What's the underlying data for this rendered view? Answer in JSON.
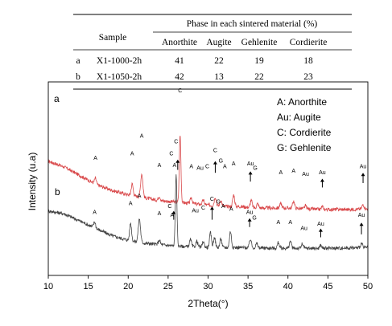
{
  "chart_data": {
    "type": "line",
    "xlabel": "2Theta(°)",
    "ylabel": "Intensity (u.a)",
    "xlim": [
      10,
      50
    ],
    "xticks": [
      10,
      15,
      20,
      25,
      30,
      35,
      40,
      45,
      50
    ],
    "grid": false,
    "table": {
      "headers": {
        "sample": "Sample",
        "phase_group": "Phase in each sintered material (%)",
        "phases": [
          "Anorthite",
          "Augite",
          "Gehlenite",
          "Cordierite"
        ]
      },
      "rows": [
        {
          "id": "a",
          "sample": "X1-1000-2h",
          "values": [
            "41",
            "22",
            "19",
            "18"
          ]
        },
        {
          "id": "b",
          "sample": "X1-1050-2h",
          "values": [
            "42",
            "13",
            "22",
            "23"
          ]
        }
      ]
    },
    "legend": {
      "placement": "top-right",
      "entries": [
        "A: Anorthite",
        "Au: Augite",
        "C: Cordierite",
        "G: Gehlenite"
      ]
    },
    "series": [
      {
        "name": "a",
        "color": "#d9484a",
        "level": 0.56,
        "baseline": [
          [
            10,
            78
          ],
          [
            12,
            74
          ],
          [
            14,
            68
          ],
          [
            16,
            62
          ],
          [
            18,
            58
          ],
          [
            20,
            55
          ],
          [
            22,
            53
          ],
          [
            24,
            51
          ],
          [
            26,
            50
          ],
          [
            28,
            49
          ],
          [
            30,
            48
          ],
          [
            32,
            47
          ],
          [
            34,
            47
          ],
          [
            36,
            46
          ],
          [
            38,
            46
          ],
          [
            40,
            46
          ],
          [
            42,
            45.5
          ],
          [
            44,
            45
          ],
          [
            46,
            45
          ],
          [
            48,
            45
          ],
          [
            50,
            45.5
          ]
        ],
        "peaks": [
          [
            15.9,
            4,
            0.12
          ],
          [
            20.5,
            8,
            0.12
          ],
          [
            21.7,
            16,
            0.14
          ],
          [
            23.9,
            3,
            0.12
          ],
          [
            26.5,
            46,
            0.1
          ],
          [
            27.9,
            4,
            0.12
          ],
          [
            29.4,
            3,
            0.12
          ],
          [
            30.9,
            6,
            0.12
          ],
          [
            31.6,
            4,
            0.12
          ],
          [
            33.2,
            8,
            0.12
          ],
          [
            35.4,
            5,
            0.12
          ],
          [
            36.2,
            3,
            0.12
          ],
          [
            39.1,
            3,
            0.12
          ],
          [
            40.7,
            5,
            0.12
          ],
          [
            42.2,
            2,
            0.12
          ],
          [
            44.3,
            2,
            0.12
          ],
          [
            49.4,
            3,
            0.12
          ]
        ]
      },
      {
        "name": "b",
        "color": "#444444",
        "level": 0.81,
        "baseline": [
          [
            10,
            44
          ],
          [
            12,
            42
          ],
          [
            14,
            37
          ],
          [
            16,
            32
          ],
          [
            18,
            27
          ],
          [
            20,
            24
          ],
          [
            22,
            22
          ],
          [
            24,
            21
          ],
          [
            26,
            20
          ],
          [
            28,
            19.5
          ],
          [
            30,
            19
          ],
          [
            32,
            19
          ],
          [
            34,
            19
          ],
          [
            36,
            18.8
          ],
          [
            38,
            18.6
          ],
          [
            40,
            18.5
          ],
          [
            42,
            18.5
          ],
          [
            44,
            18.5
          ],
          [
            46,
            18.6
          ],
          [
            48,
            18.8
          ],
          [
            50,
            19
          ]
        ],
        "peaks": [
          [
            15.8,
            4,
            0.12
          ],
          [
            20.3,
            12,
            0.12
          ],
          [
            21.4,
            16,
            0.14
          ],
          [
            23.9,
            3,
            0.12
          ],
          [
            26.0,
            48,
            0.1
          ],
          [
            27.8,
            5,
            0.12
          ],
          [
            28.6,
            4,
            0.12
          ],
          [
            29.4,
            4,
            0.12
          ],
          [
            30.3,
            10,
            0.12
          ],
          [
            30.8,
            7,
            0.12
          ],
          [
            31.6,
            6,
            0.12
          ],
          [
            32.8,
            11,
            0.12
          ],
          [
            35.3,
            6,
            0.12
          ],
          [
            36.1,
            3,
            0.12
          ],
          [
            38.8,
            4,
            0.12
          ],
          [
            40.3,
            5,
            0.12
          ],
          [
            41.8,
            3,
            0.12
          ],
          [
            44.1,
            2,
            0.12
          ],
          [
            49.2,
            3,
            0.12
          ]
        ]
      }
    ],
    "series_labels": [
      "a",
      "b"
    ],
    "peak_labels": [
      {
        "text": "A",
        "x": 15.9,
        "y": 79
      },
      {
        "text": "A",
        "x": 20.5,
        "y": 82
      },
      {
        "text": "A",
        "x": 21.7,
        "y": 94
      },
      {
        "text": "A",
        "x": 23.9,
        "y": 74
      },
      {
        "text": "C",
        "x": 26.5,
        "y": 125
      },
      {
        "text": "C",
        "x": 25.4,
        "y": 82
      },
      {
        "text": "A",
        "x": 25.8,
        "y": 74
      },
      {
        "text": "A",
        "x": 27.9,
        "y": 73
      },
      {
        "text": "Au",
        "x": 29.0,
        "y": 72
      },
      {
        "text": "C",
        "x": 29.9,
        "y": 73
      },
      {
        "text": "C",
        "x": 30.9,
        "y": 84
      },
      {
        "text": "G",
        "x": 31.6,
        "y": 77
      },
      {
        "text": "A",
        "x": 32.1,
        "y": 73
      },
      {
        "text": "A",
        "x": 33.2,
        "y": 75
      },
      {
        "text": "Au",
        "x": 35.3,
        "y": 75
      },
      {
        "text": "G",
        "x": 35.9,
        "y": 72
      },
      {
        "text": "A",
        "x": 39.1,
        "y": 69
      },
      {
        "text": "A",
        "x": 40.7,
        "y": 70
      },
      {
        "text": "Au",
        "x": 42.2,
        "y": 68
      },
      {
        "text": "Au",
        "x": 44.3,
        "y": 69
      },
      {
        "text": "Au",
        "x": 49.4,
        "y": 73
      },
      {
        "text": "A",
        "x": 15.8,
        "y": 42
      },
      {
        "text": "A",
        "x": 20.3,
        "y": 48
      },
      {
        "text": "A",
        "x": 21.4,
        "y": 53
      },
      {
        "text": "A",
        "x": 23.9,
        "y": 41
      },
      {
        "text": "C",
        "x": 26.0,
        "y": 90
      },
      {
        "text": "C",
        "x": 25.2,
        "y": 46
      },
      {
        "text": "A",
        "x": 25.5,
        "y": 40
      },
      {
        "text": "Au",
        "x": 28.4,
        "y": 43
      },
      {
        "text": "C",
        "x": 29.4,
        "y": 45
      },
      {
        "text": "C",
        "x": 30.5,
        "y": 51
      },
      {
        "text": "G",
        "x": 31.3,
        "y": 49
      },
      {
        "text": "A",
        "x": 31.9,
        "y": 46
      },
      {
        "text": "A",
        "x": 32.9,
        "y": 44
      },
      {
        "text": "Au",
        "x": 35.2,
        "y": 42
      },
      {
        "text": "G",
        "x": 35.8,
        "y": 38
      },
      {
        "text": "A",
        "x": 38.8,
        "y": 35
      },
      {
        "text": "A",
        "x": 40.3,
        "y": 35
      },
      {
        "text": "Au",
        "x": 42.0,
        "y": 31
      },
      {
        "text": "Au",
        "x": 44.1,
        "y": 34
      },
      {
        "text": "Au",
        "x": 49.2,
        "y": 40
      }
    ],
    "arrows": [
      {
        "x": 26.2,
        "y_from": 72,
        "y_to": 79
      },
      {
        "x": 30.9,
        "y_from": 70,
        "y_to": 78
      },
      {
        "x": 35.3,
        "y_from": 64,
        "y_to": 71
      },
      {
        "x": 44.3,
        "y_from": 60,
        "y_to": 66
      },
      {
        "x": 49.4,
        "y_from": 63,
        "y_to": 70
      },
      {
        "x": 25.7,
        "y_from": 38,
        "y_to": 44
      },
      {
        "x": 30.5,
        "y_from": 38,
        "y_to": 47
      },
      {
        "x": 35.2,
        "y_from": 33,
        "y_to": 39
      },
      {
        "x": 44.1,
        "y_from": 26,
        "y_to": 32
      },
      {
        "x": 49.2,
        "y_from": 28,
        "y_to": 36
      }
    ]
  }
}
